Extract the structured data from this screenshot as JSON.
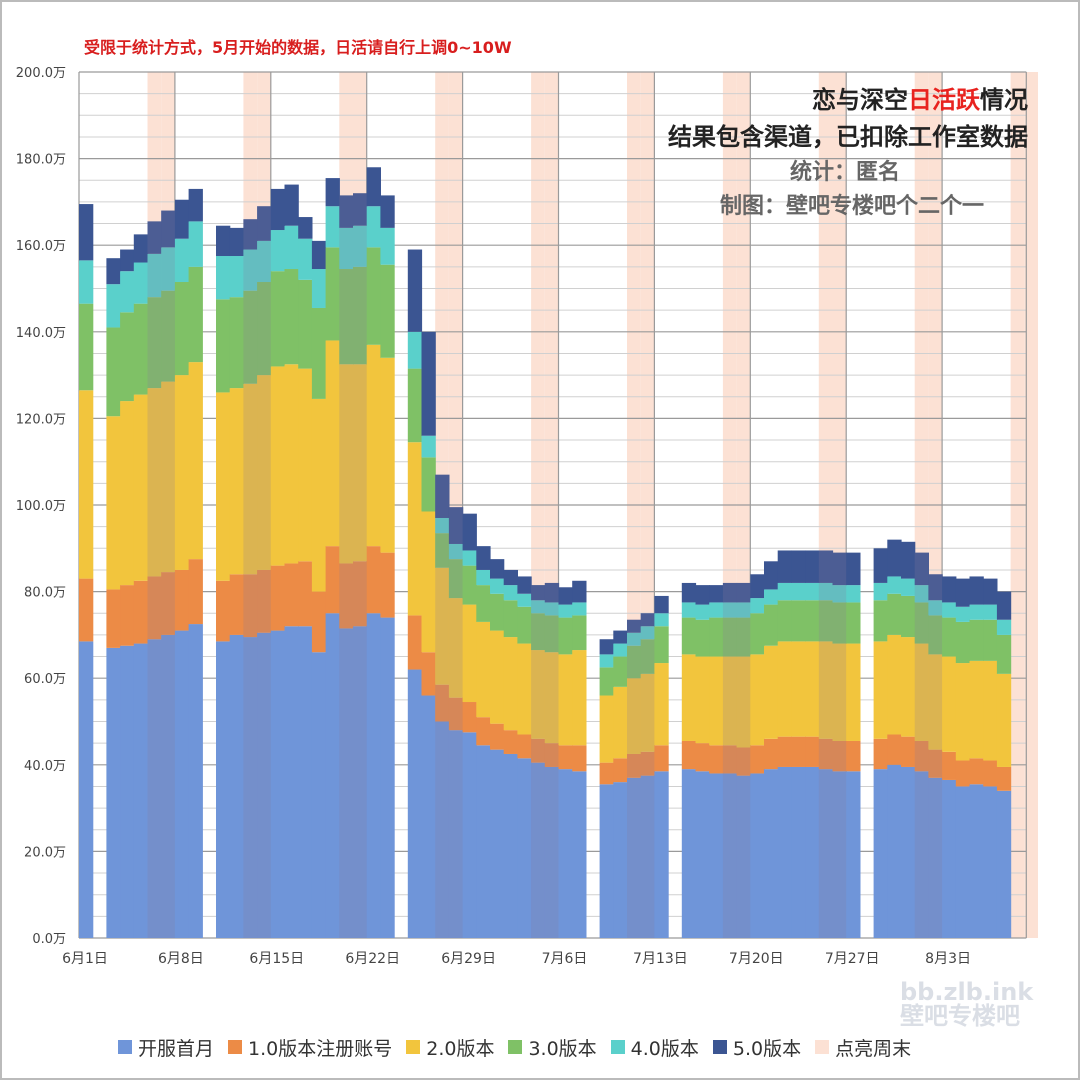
{
  "note": "受限于统计方式，5月开始的数据，日活请自行上调0~10W",
  "title": {
    "prefix": "恋与深空",
    "highlight": "日活跃",
    "suffix": "情况",
    "line2": "结果包含渠道，已扣除工作室数据",
    "line3": "统计：匿名",
    "line4": "制图：壁吧专楼吧个二个一"
  },
  "watermark": {
    "line1": "bb.zlb.ink",
    "line2": "壁吧专楼吧"
  },
  "chart_data": {
    "type": "bar",
    "stacked": true,
    "unit": "万",
    "ylim": [
      0,
      200
    ],
    "yticks": [
      "0.0万",
      "20.0万",
      "40.0万",
      "60.0万",
      "80.0万",
      "100.0万",
      "120.0万",
      "140.0万",
      "160.0万",
      "180.0万",
      "200.0万"
    ],
    "xticks": [
      {
        "label": "6月1日",
        "day": 0
      },
      {
        "label": "6月8日",
        "day": 7
      },
      {
        "label": "6月15日",
        "day": 14
      },
      {
        "label": "6月22日",
        "day": 21
      },
      {
        "label": "6月29日",
        "day": 28
      },
      {
        "label": "7月6日",
        "day": 35
      },
      {
        "label": "7月13日",
        "day": 42
      },
      {
        "label": "7月20日",
        "day": 49
      },
      {
        "label": "7月27日",
        "day": 56
      },
      {
        "label": "8月3日",
        "day": 63
      }
    ],
    "weekends": [
      5,
      6,
      12,
      13,
      19,
      20,
      26,
      27,
      33,
      34,
      40,
      41,
      47,
      48,
      54,
      55,
      61,
      62,
      68,
      69
    ],
    "days": [
      0,
      2,
      3,
      4,
      5,
      6,
      7,
      8,
      10,
      11,
      12,
      13,
      14,
      15,
      16,
      17,
      18,
      19,
      20,
      21,
      22,
      24,
      25,
      26,
      27,
      28,
      29,
      30,
      31,
      32,
      33,
      34,
      35,
      36,
      38,
      39,
      40,
      41,
      42,
      44,
      45,
      46,
      47,
      48,
      49,
      50,
      51,
      52,
      53,
      54,
      55,
      56,
      58,
      59,
      60,
      61,
      62,
      63,
      64,
      65,
      66,
      67
    ],
    "series": [
      {
        "name": "开服首月",
        "color": "#6f95d9",
        "values": [
          68.5,
          67.0,
          67.5,
          68.0,
          69.0,
          70.0,
          71.0,
          72.5,
          68.5,
          70.0,
          69.5,
          70.5,
          71.0,
          72.0,
          72.0,
          66.0,
          75.0,
          71.5,
          72.0,
          75.0,
          74.0,
          62.0,
          56.0,
          50.0,
          48.0,
          47.5,
          44.5,
          43.5,
          42.5,
          41.5,
          40.5,
          39.5,
          39.0,
          38.5,
          35.5,
          36.0,
          37.0,
          37.5,
          38.5,
          39.0,
          38.5,
          38.0,
          38.0,
          37.5,
          38.0,
          39.0,
          39.5,
          39.5,
          39.5,
          39.0,
          38.5,
          38.5,
          39.0,
          40.0,
          39.5,
          38.5,
          37.0,
          36.5,
          35.0,
          35.5,
          35.0,
          34.0
        ]
      },
      {
        "name": "1.0版本注册账号",
        "color": "#ec8b46",
        "values": [
          14.5,
          13.5,
          14.0,
          14.5,
          14.5,
          14.5,
          14.0,
          15.0,
          14.0,
          14.0,
          14.5,
          14.5,
          15.0,
          14.5,
          15.0,
          14.0,
          15.5,
          15.0,
          15.0,
          15.5,
          15.0,
          12.5,
          10.0,
          8.5,
          7.5,
          7.0,
          6.5,
          6.0,
          5.5,
          5.5,
          5.5,
          5.5,
          5.5,
          6.0,
          5.0,
          5.5,
          5.5,
          5.5,
          6.0,
          6.5,
          6.5,
          6.5,
          6.5,
          6.5,
          6.5,
          7.0,
          7.0,
          7.0,
          7.0,
          7.0,
          7.0,
          7.0,
          7.0,
          7.0,
          7.0,
          7.0,
          6.5,
          6.5,
          6.0,
          6.0,
          6.0,
          5.5
        ]
      },
      {
        "name": "2.0版本",
        "color": "#f2c53d",
        "values": [
          43.5,
          40.0,
          42.5,
          43.0,
          43.5,
          44.0,
          45.0,
          45.5,
          43.5,
          43.0,
          44.0,
          45.0,
          46.0,
          46.0,
          44.5,
          44.5,
          47.5,
          46.0,
          45.5,
          46.5,
          45.0,
          40.0,
          32.5,
          27.0,
          23.0,
          22.5,
          22.0,
          21.5,
          21.5,
          21.0,
          20.5,
          21.0,
          21.0,
          22.0,
          15.5,
          16.5,
          17.5,
          18.0,
          19.0,
          20.0,
          20.0,
          20.5,
          20.5,
          21.0,
          21.0,
          21.5,
          22.0,
          22.0,
          22.0,
          22.5,
          22.5,
          22.5,
          22.5,
          23.0,
          23.0,
          22.5,
          22.0,
          22.0,
          22.5,
          22.5,
          23.0,
          21.5
        ]
      },
      {
        "name": "3.0版本",
        "color": "#7fc166",
        "values": [
          20.0,
          20.5,
          20.5,
          21.0,
          21.0,
          21.0,
          21.5,
          22.0,
          21.5,
          21.0,
          21.5,
          21.5,
          22.0,
          22.0,
          20.5,
          21.0,
          21.5,
          22.0,
          22.5,
          22.5,
          21.5,
          17.0,
          12.5,
          8.0,
          9.0,
          9.0,
          8.5,
          8.5,
          8.5,
          8.5,
          8.5,
          8.5,
          8.5,
          8.0,
          6.5,
          7.0,
          7.5,
          8.0,
          8.5,
          8.5,
          8.5,
          9.0,
          9.0,
          9.0,
          9.5,
          9.5,
          9.5,
          9.5,
          9.5,
          9.5,
          9.5,
          9.5,
          9.5,
          9.5,
          9.5,
          9.5,
          9.0,
          9.0,
          9.5,
          9.5,
          9.5,
          9.0
        ]
      },
      {
        "name": "4.0版本",
        "color": "#5ad0cb",
        "values": [
          10.0,
          10.0,
          9.5,
          9.5,
          10.0,
          10.0,
          10.0,
          10.5,
          10.0,
          9.5,
          9.5,
          9.5,
          9.5,
          10.0,
          9.5,
          9.0,
          9.5,
          9.5,
          9.5,
          9.5,
          8.5,
          8.5,
          5.0,
          3.5,
          3.5,
          3.5,
          3.5,
          3.5,
          3.5,
          3.0,
          3.0,
          3.0,
          3.0,
          3.0,
          3.0,
          3.0,
          3.0,
          3.0,
          3.0,
          3.5,
          3.5,
          3.5,
          3.5,
          3.5,
          3.5,
          3.5,
          4.0,
          4.0,
          4.0,
          4.0,
          4.0,
          4.0,
          4.0,
          4.0,
          4.0,
          4.0,
          3.5,
          3.5,
          3.5,
          3.5,
          3.5,
          3.5
        ]
      },
      {
        "name": "5.0版本",
        "color": "#3b5592",
        "values": [
          13.0,
          6.0,
          5.0,
          6.5,
          7.5,
          8.5,
          9.0,
          7.5,
          7.0,
          6.5,
          7.0,
          8.0,
          9.5,
          9.5,
          5.0,
          6.5,
          6.5,
          7.5,
          7.5,
          9.0,
          7.5,
          19.0,
          24.0,
          10.0,
          8.5,
          8.5,
          5.5,
          4.5,
          3.5,
          4.0,
          3.5,
          4.5,
          4.0,
          5.0,
          3.5,
          3.0,
          3.0,
          3.0,
          4.0,
          4.5,
          4.5,
          4.0,
          4.5,
          4.5,
          5.5,
          6.5,
          7.5,
          7.5,
          7.5,
          7.5,
          7.5,
          7.5,
          8.0,
          8.5,
          8.5,
          7.5,
          6.0,
          6.0,
          6.5,
          6.5,
          6.0,
          6.5
        ]
      },
      {
        "name": "点亮周末",
        "color": "#fce1d4"
      }
    ]
  }
}
